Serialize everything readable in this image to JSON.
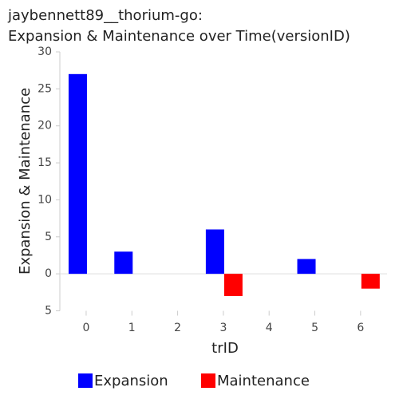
{
  "chart_data": {
    "type": "bar",
    "title": [
      "jaybennett89__thorium-go:",
      "Expansion & Maintenance over Time(versionID)"
    ],
    "x_label": "trID",
    "y_label": "Expansion & Maintenance",
    "categories": [
      "0",
      "1",
      "2",
      "3",
      "4",
      "5",
      "6"
    ],
    "series": [
      {
        "name": "Expansion",
        "color": "#0000ff",
        "values": [
          27,
          3,
          0,
          6,
          0,
          2,
          0
        ]
      },
      {
        "name": "Maintenance",
        "color": "#ff0000",
        "values": [
          0,
          0,
          0,
          -3,
          0,
          0,
          -2
        ]
      }
    ],
    "ylim": [
      -5,
      30
    ],
    "yticks": [
      {
        "value": -5,
        "label": "5"
      },
      0,
      5,
      10,
      15,
      20,
      25,
      30
    ]
  }
}
